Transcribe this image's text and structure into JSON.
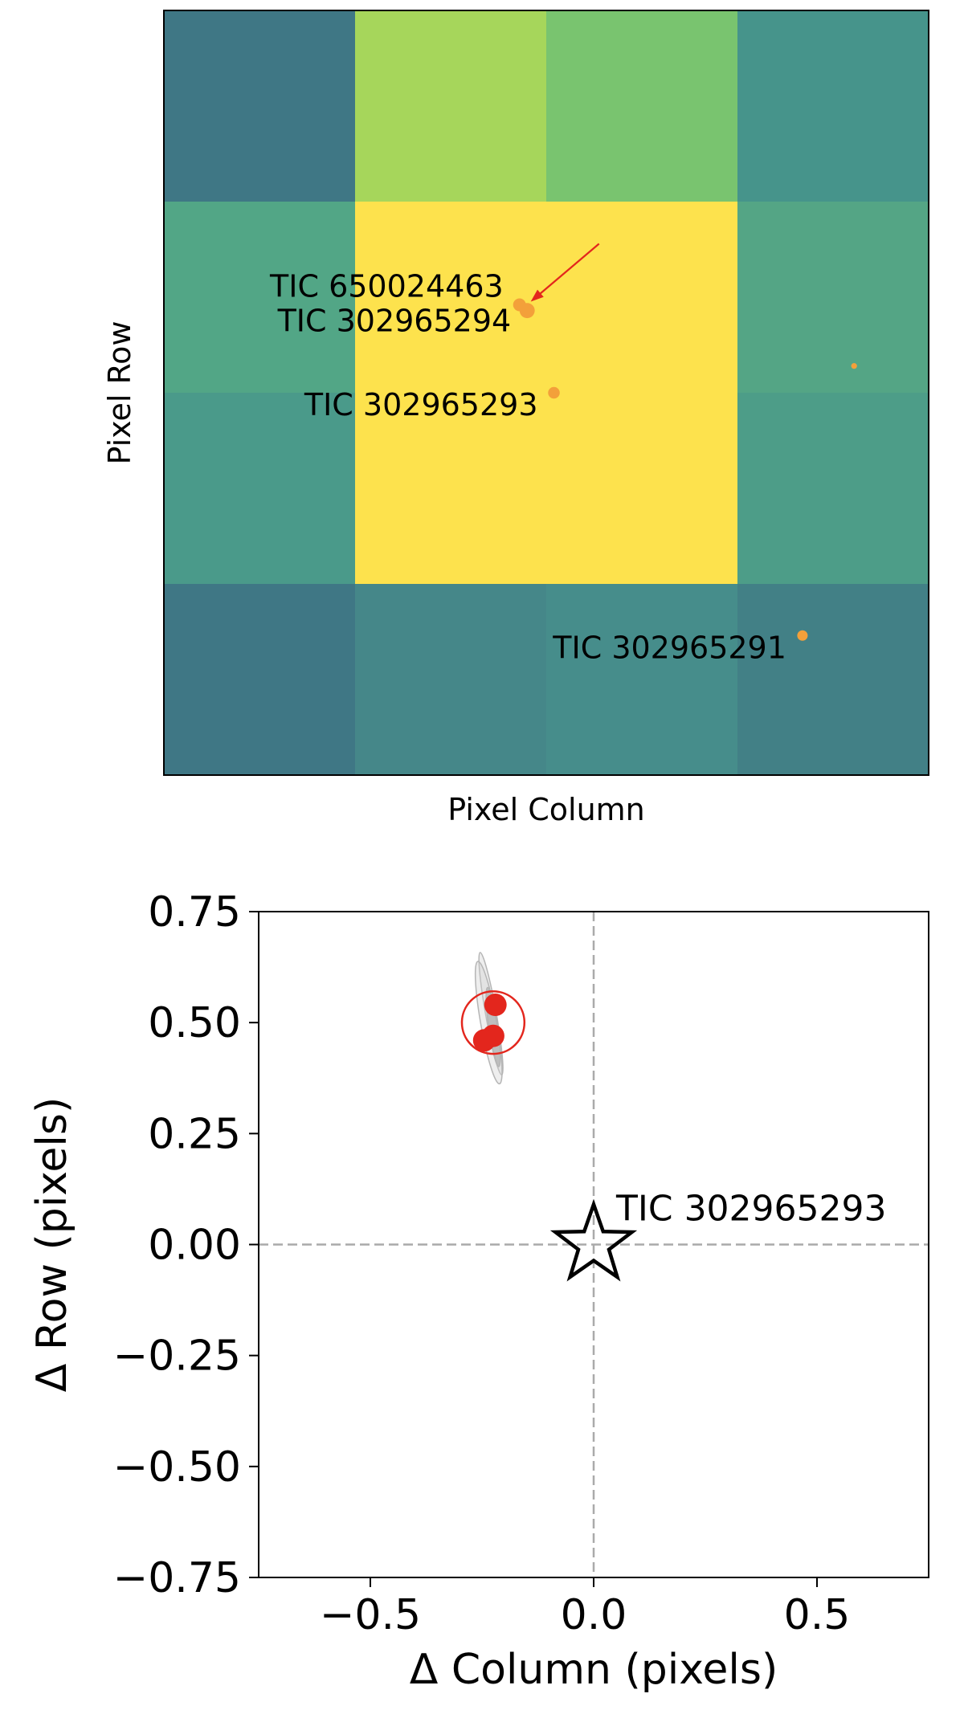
{
  "chart_data": [
    {
      "type": "heatmap",
      "xlabel": "Pixel Column",
      "ylabel": "Pixel Row",
      "grid": false,
      "legend": "none",
      "pixels": [
        [
          "#3f7785",
          "#a6d65b",
          "#79c46f",
          "#46948b"
        ],
        [
          "#52a686",
          "#fde24d",
          "#fde24d",
          "#54a585"
        ],
        [
          "#4a9a8a",
          "#fde24d",
          "#fde24d",
          "#4d9d88"
        ],
        [
          "#3f7785",
          "#458789",
          "#468d8b",
          "#428086"
        ]
      ],
      "sources": [
        {
          "name": "TIC 650024463",
          "x": 1.86,
          "y": 1.54,
          "size": 5.5
        },
        {
          "name": "TIC 302965294",
          "x": 1.9,
          "y": 1.57,
          "size": 6.5
        },
        {
          "name": "TIC 302965293",
          "x": 2.04,
          "y": 2.0,
          "size": 5
        },
        {
          "name": "",
          "x": 3.61,
          "y": 1.86,
          "size": 2.5
        },
        {
          "name": "TIC 302965291",
          "x": 3.34,
          "y": 3.27,
          "size": 4.5
        }
      ],
      "label_color": "#000000",
      "source_color": "#f3a03a",
      "arrow_color": "#e3261d"
    },
    {
      "type": "scatter",
      "xlabel": "Δ Column (pixels)",
      "ylabel": "Δ Row (pixels)",
      "xlim": [
        -0.75,
        0.75
      ],
      "ylim": [
        -0.75,
        0.75
      ],
      "xticks": [
        -0.5,
        0.0,
        0.5
      ],
      "xtick_labels": [
        "−0.5",
        "0.0",
        "0.5"
      ],
      "yticks": [
        0.75,
        0.5,
        0.25,
        0.0,
        -0.25,
        -0.5,
        -0.75
      ],
      "ytick_labels": [
        "0.75",
        "0.50",
        "0.25",
        "0.00",
        "−0.25",
        "−0.50",
        "−0.75"
      ],
      "grid": false,
      "reference_lines": {
        "x": 0.0,
        "y": 0.0
      },
      "target": {
        "name": "TIC 302965293",
        "x": 0.0,
        "y": 0.0,
        "marker": "star"
      },
      "points": [
        {
          "x": -0.22,
          "y": 0.54
        },
        {
          "x": -0.225,
          "y": 0.47
        },
        {
          "x": -0.245,
          "y": 0.46
        }
      ],
      "mean_circle": {
        "x": -0.225,
        "y": 0.5,
        "radius": 0.07
      },
      "uncertainty_ellipses": [
        {
          "x": -0.23,
          "y": 0.52,
          "rx": 0.012,
          "ry": 0.14,
          "angle": -10
        },
        {
          "x": -0.235,
          "y": 0.5,
          "rx": 0.018,
          "ry": 0.14,
          "angle": -10
        },
        {
          "x": -0.225,
          "y": 0.49,
          "rx": 0.01,
          "ry": 0.09,
          "angle": -8
        }
      ],
      "point_color": "#e3261d"
    }
  ]
}
